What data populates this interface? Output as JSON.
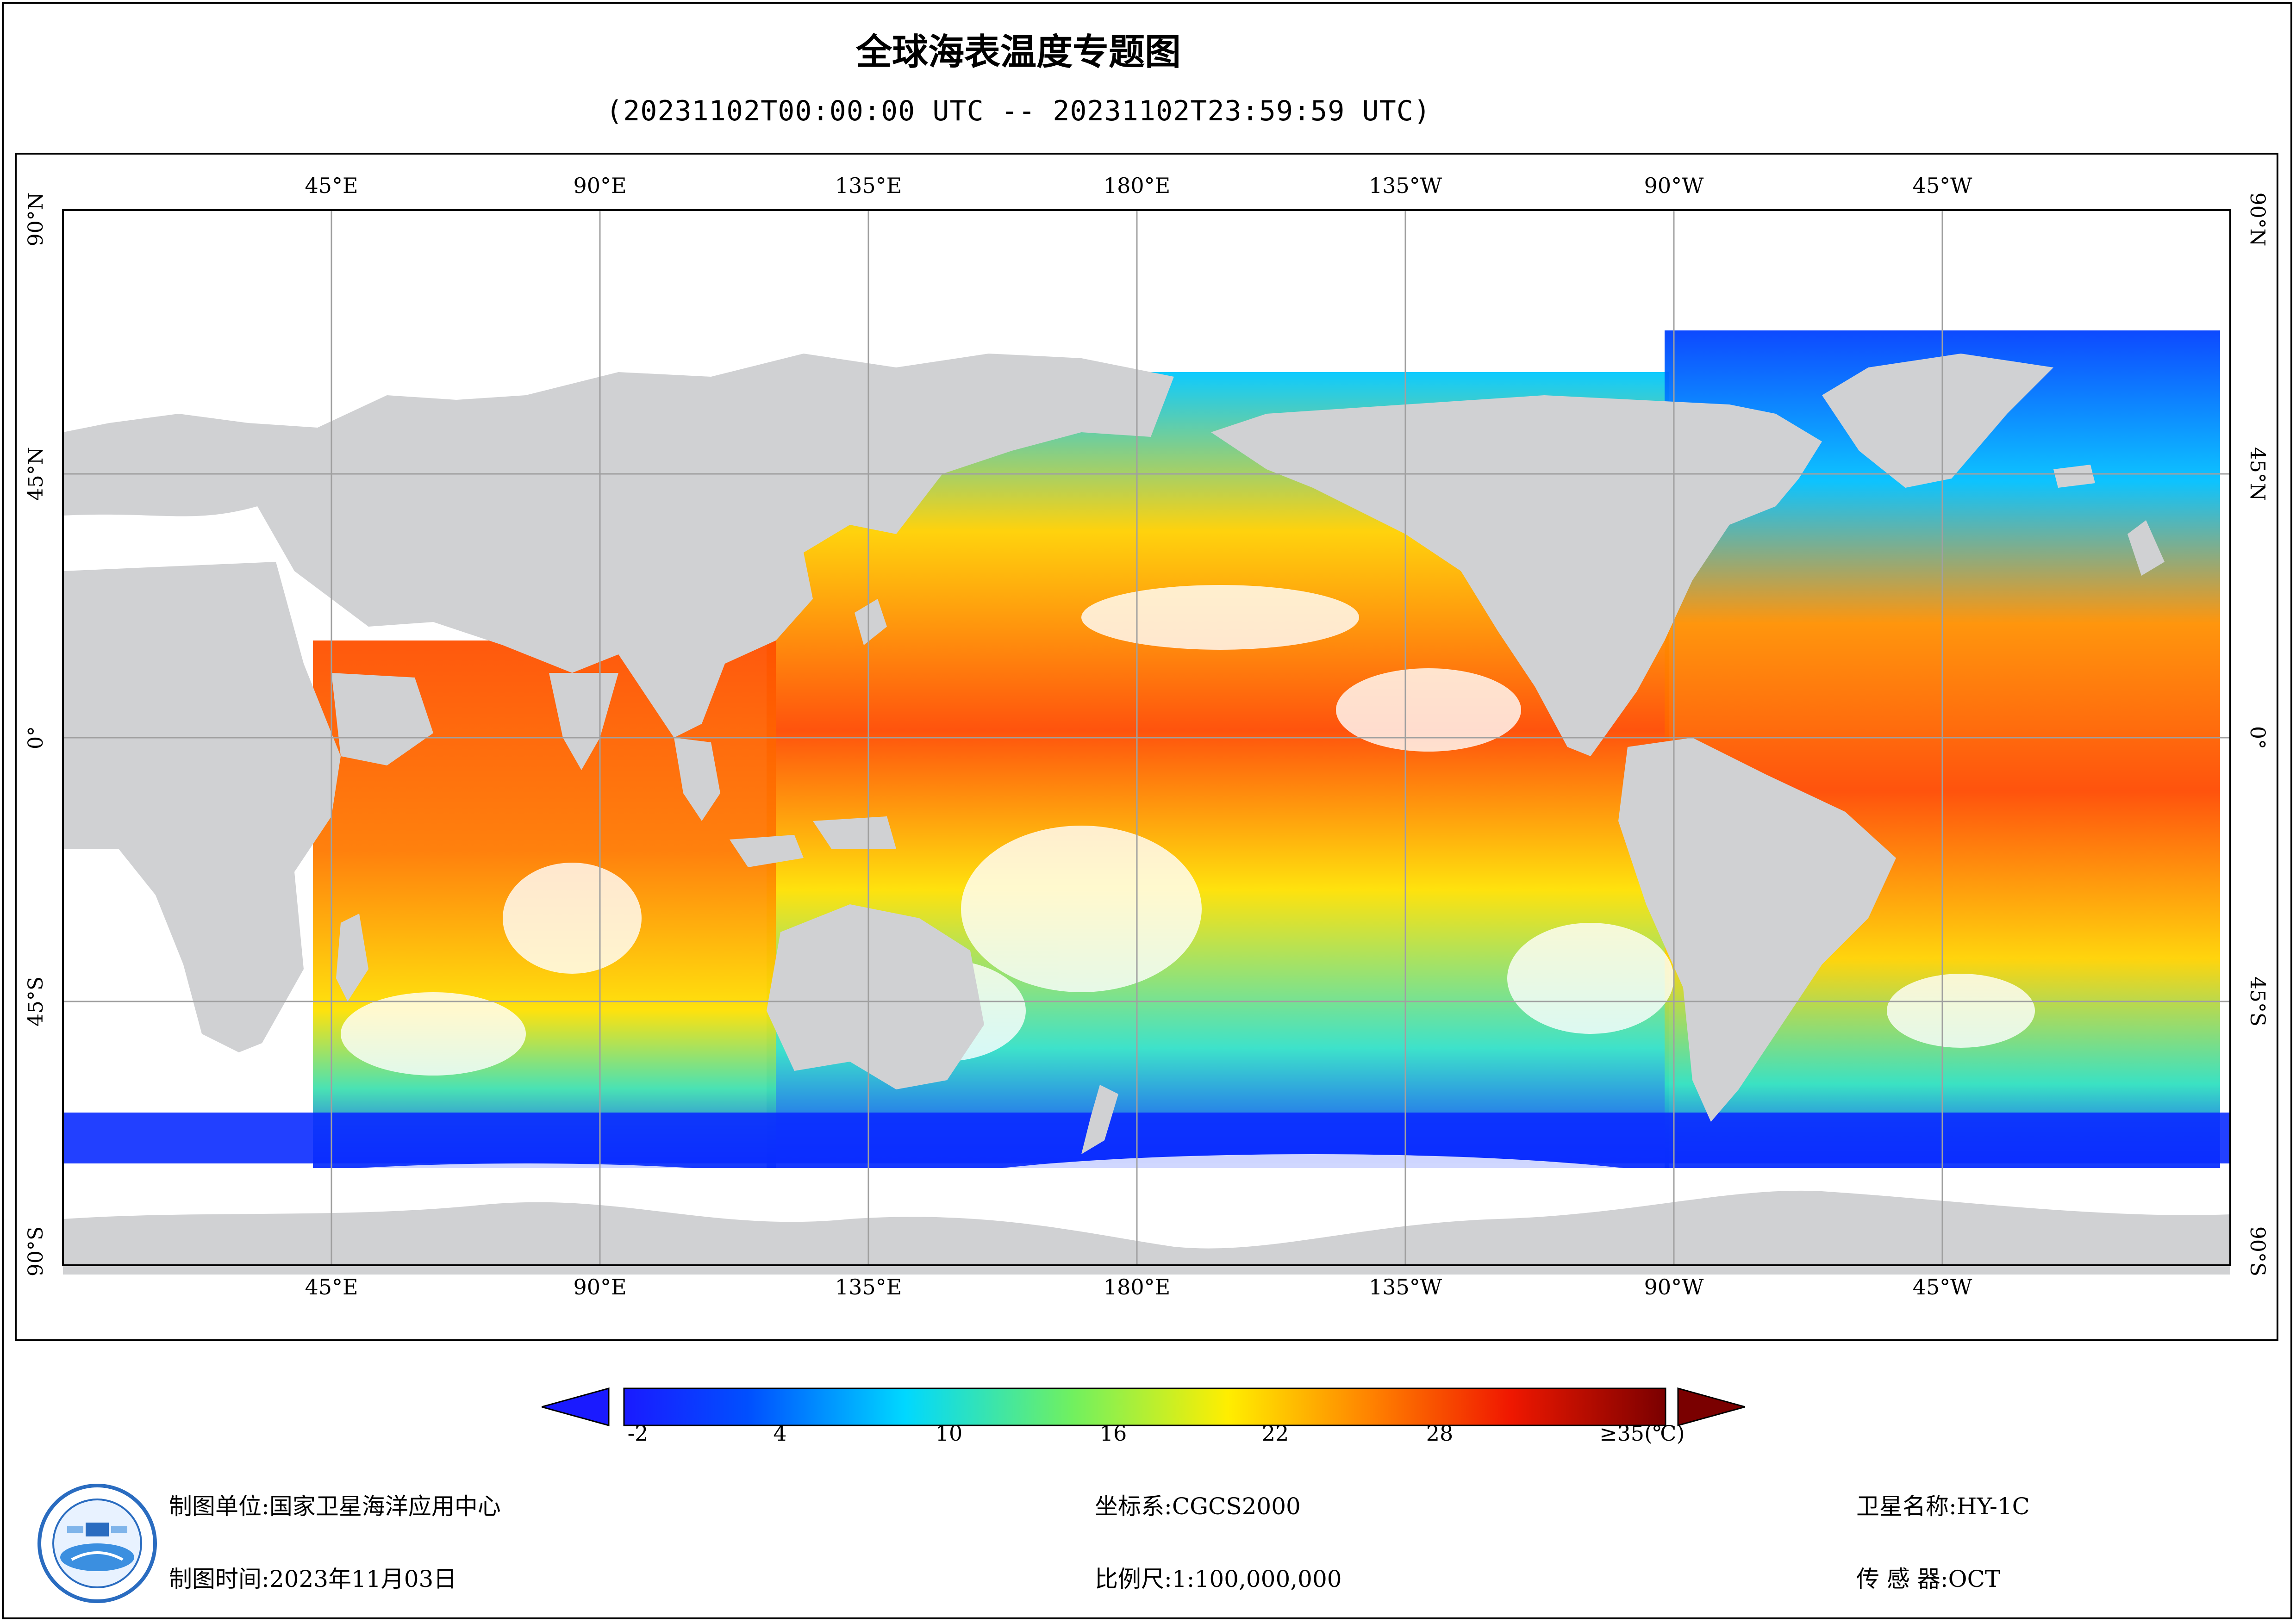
{
  "title": "全球海表温度专题图",
  "subtitle": "(20231102T00:00:00 UTC -- 20231102T23:59:59 UTC)",
  "map": {
    "lon_labels": [
      "45°E",
      "90°E",
      "135°E",
      "180°E",
      "135°W",
      "90°W",
      "45°W"
    ],
    "lat_labels": [
      "90°N",
      "45°N",
      "0°",
      "45°S",
      "90°S"
    ],
    "colors": {
      "land": "#d0d1d3",
      "no_data": "#ffffff",
      "grid": "#a0a0a0"
    }
  },
  "colorbar": {
    "tick_labels": [
      "-2",
      "4",
      "10",
      "16",
      "22",
      "28"
    ],
    "max_label": "≥35(℃)",
    "min_value": -2,
    "max_value": 35,
    "under_color": "#1a1aff",
    "over_color": "#7a0000"
  },
  "footer": {
    "org_label": "制图单位:",
    "org_value": "国家卫星海洋应用中心",
    "time_label": "制图时间:",
    "time_value": "2023年11月03日",
    "crs_label": "坐标系:",
    "crs_value": "CGCS2000",
    "scale_label": "比例尺:",
    "scale_value": "1:100,000,000",
    "satellite_label": "卫星名称:",
    "satellite_value": "HY-1C",
    "sensor_label": "传 感 器:",
    "sensor_value": "OCT"
  }
}
